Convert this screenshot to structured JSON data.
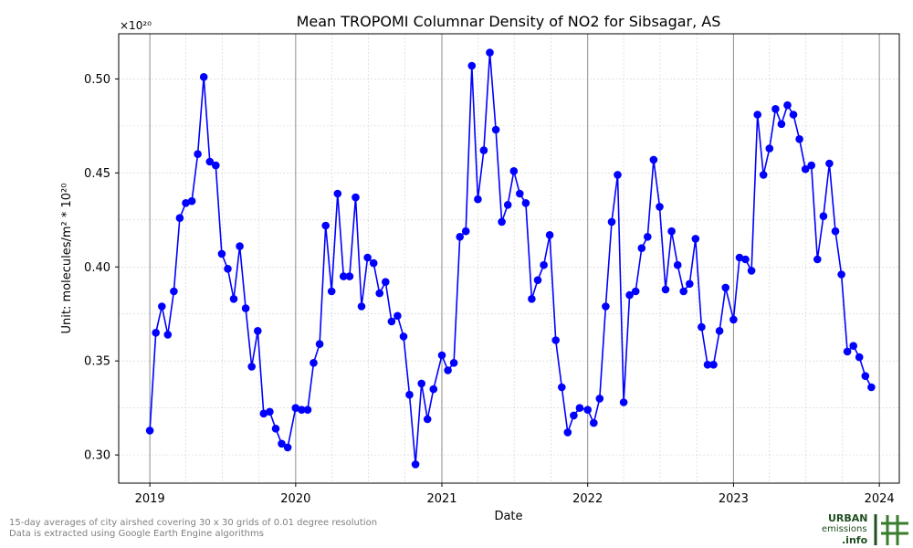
{
  "chart_data": {
    "type": "line",
    "title": "Mean TROPOMI Columnar Density of NO2 for Sibsagar, AS",
    "xlabel": "Date",
    "ylabel": "Unit: molecules/m² * 10²⁰",
    "y_scale_label": "×10²⁰",
    "ylim": [
      0.285,
      0.524
    ],
    "xlim": [
      "2018-10-15",
      "2024-02-20"
    ],
    "x_ticks": [
      "2019-01-01",
      "2020-01-01",
      "2021-01-01",
      "2022-01-01",
      "2023-01-01",
      "2024-01-01"
    ],
    "x_tick_labels": [
      "2019",
      "2020",
      "2021",
      "2022",
      "2023",
      "2024"
    ],
    "y_ticks": [
      0.3,
      0.35,
      0.4,
      0.45,
      0.5
    ],
    "y_tick_labels": [
      "0.30",
      "0.35",
      "0.40",
      "0.45",
      "0.50"
    ],
    "grid": true,
    "marker": "circle",
    "series": [
      {
        "color": "#0000ff",
        "points": [
          [
            "2019-01-01",
            0.313
          ],
          [
            "2019-01-16",
            0.365
          ],
          [
            "2019-01-31",
            0.379
          ],
          [
            "2019-02-15",
            0.364
          ],
          [
            "2019-03-02",
            0.387
          ],
          [
            "2019-03-17",
            0.426
          ],
          [
            "2019-04-01",
            0.434
          ],
          [
            "2019-04-16",
            0.435
          ],
          [
            "2019-05-01",
            0.46
          ],
          [
            "2019-05-16",
            0.501
          ],
          [
            "2019-05-31",
            0.456
          ],
          [
            "2019-06-15",
            0.454
          ],
          [
            "2019-06-30",
            0.407
          ],
          [
            "2019-07-15",
            0.399
          ],
          [
            "2019-07-30",
            0.383
          ],
          [
            "2019-08-14",
            0.411
          ],
          [
            "2019-08-29",
            0.378
          ],
          [
            "2019-09-13",
            0.347
          ],
          [
            "2019-09-28",
            0.366
          ],
          [
            "2019-10-13",
            0.322
          ],
          [
            "2019-10-28",
            0.323
          ],
          [
            "2019-11-12",
            0.314
          ],
          [
            "2019-11-27",
            0.306
          ],
          [
            "2019-12-12",
            0.304
          ],
          [
            "2020-01-01",
            0.325
          ],
          [
            "2020-01-16",
            0.324
          ],
          [
            "2020-01-31",
            0.324
          ],
          [
            "2020-02-15",
            0.349
          ],
          [
            "2020-03-01",
            0.359
          ],
          [
            "2020-03-16",
            0.422
          ],
          [
            "2020-03-31",
            0.387
          ],
          [
            "2020-04-15",
            0.439
          ],
          [
            "2020-04-30",
            0.395
          ],
          [
            "2020-05-15",
            0.395
          ],
          [
            "2020-05-30",
            0.437
          ],
          [
            "2020-06-14",
            0.379
          ],
          [
            "2020-06-29",
            0.405
          ],
          [
            "2020-07-14",
            0.402
          ],
          [
            "2020-07-29",
            0.386
          ],
          [
            "2020-08-13",
            0.392
          ],
          [
            "2020-08-28",
            0.371
          ],
          [
            "2020-09-12",
            0.374
          ],
          [
            "2020-09-27",
            0.363
          ],
          [
            "2020-10-12",
            0.332
          ],
          [
            "2020-10-27",
            0.295
          ],
          [
            "2020-11-11",
            0.338
          ],
          [
            "2020-11-26",
            0.319
          ],
          [
            "2020-12-11",
            0.335
          ],
          [
            "2021-01-01",
            0.353
          ],
          [
            "2021-01-16",
            0.345
          ],
          [
            "2021-01-31",
            0.349
          ],
          [
            "2021-02-15",
            0.416
          ],
          [
            "2021-03-02",
            0.419
          ],
          [
            "2021-03-17",
            0.507
          ],
          [
            "2021-04-01",
            0.436
          ],
          [
            "2021-04-16",
            0.462
          ],
          [
            "2021-05-01",
            0.514
          ],
          [
            "2021-05-16",
            0.473
          ],
          [
            "2021-05-31",
            0.424
          ],
          [
            "2021-06-15",
            0.433
          ],
          [
            "2021-06-30",
            0.451
          ],
          [
            "2021-07-15",
            0.439
          ],
          [
            "2021-07-30",
            0.434
          ],
          [
            "2021-08-14",
            0.383
          ],
          [
            "2021-08-29",
            0.393
          ],
          [
            "2021-09-13",
            0.401
          ],
          [
            "2021-09-28",
            0.417
          ],
          [
            "2021-10-13",
            0.361
          ],
          [
            "2021-10-28",
            0.336
          ],
          [
            "2021-11-12",
            0.312
          ],
          [
            "2021-11-27",
            0.321
          ],
          [
            "2021-12-12",
            0.325
          ],
          [
            "2022-01-01",
            0.324
          ],
          [
            "2022-01-16",
            0.317
          ],
          [
            "2022-01-31",
            0.33
          ],
          [
            "2022-02-15",
            0.379
          ],
          [
            "2022-03-02",
            0.424
          ],
          [
            "2022-03-17",
            0.449
          ],
          [
            "2022-04-01",
            0.328
          ],
          [
            "2022-04-16",
            0.385
          ],
          [
            "2022-05-01",
            0.387
          ],
          [
            "2022-05-16",
            0.41
          ],
          [
            "2022-05-31",
            0.416
          ],
          [
            "2022-06-15",
            0.457
          ],
          [
            "2022-06-30",
            0.432
          ],
          [
            "2022-07-15",
            0.388
          ],
          [
            "2022-07-30",
            0.419
          ],
          [
            "2022-08-14",
            0.401
          ],
          [
            "2022-08-29",
            0.387
          ],
          [
            "2022-09-13",
            0.391
          ],
          [
            "2022-09-28",
            0.415
          ],
          [
            "2022-10-13",
            0.368
          ],
          [
            "2022-10-28",
            0.348
          ],
          [
            "2022-11-12",
            0.348
          ],
          [
            "2022-11-27",
            0.366
          ],
          [
            "2022-12-12",
            0.389
          ],
          [
            "2023-01-01",
            0.372
          ],
          [
            "2023-01-16",
            0.405
          ],
          [
            "2023-01-31",
            0.404
          ],
          [
            "2023-02-15",
            0.398
          ],
          [
            "2023-03-02",
            0.481
          ],
          [
            "2023-03-17",
            0.449
          ],
          [
            "2023-04-01",
            0.463
          ],
          [
            "2023-04-16",
            0.484
          ],
          [
            "2023-05-01",
            0.476
          ],
          [
            "2023-05-16",
            0.486
          ],
          [
            "2023-05-31",
            0.481
          ],
          [
            "2023-06-15",
            0.468
          ],
          [
            "2023-06-30",
            0.452
          ],
          [
            "2023-07-15",
            0.454
          ],
          [
            "2023-07-30",
            0.404
          ],
          [
            "2023-08-14",
            0.427
          ],
          [
            "2023-08-29",
            0.455
          ],
          [
            "2023-09-13",
            0.419
          ],
          [
            "2023-09-28",
            0.396
          ],
          [
            "2023-10-13",
            0.355
          ],
          [
            "2023-10-28",
            0.358
          ],
          [
            "2023-11-12",
            0.352
          ],
          [
            "2023-11-27",
            0.342
          ],
          [
            "2023-12-12",
            0.336
          ]
        ]
      }
    ]
  },
  "footnotes": [
    "15-day averages of city airshed covering 30 x 30 grids of 0.01 degree resolution",
    "Data is extracted using Google Earth Engine algorithms"
  ],
  "logo": {
    "word1": "URBAN",
    "word2": "emissions",
    "word3": ".info",
    "color_dark": "#1f4e1f",
    "color_light": "#3a7d2c"
  }
}
